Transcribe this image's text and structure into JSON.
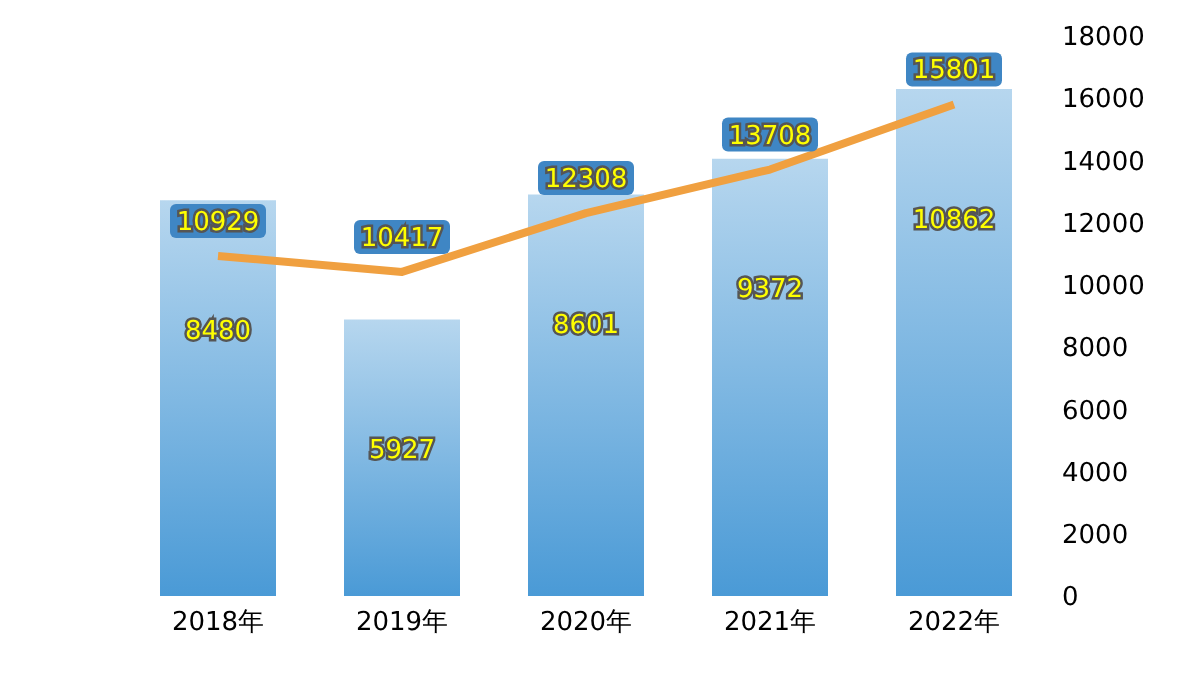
{
  "chart_data": {
    "type": "bar",
    "categories": [
      "2018年",
      "2019年",
      "2020年",
      "2021年",
      "2022年"
    ],
    "series": [
      {
        "axis": "y2",
        "color": "#4a9ad6",
        "values": [
          8480,
          5927,
          8601,
          9372,
          10862
        ]
      },
      {
        "type": "line",
        "color": "#f0a040",
        "values": [
          10929,
          10417,
          12308,
          13708,
          15801
        ]
      }
    ],
    "ylim": [
      0,
      18000
    ],
    "yticks": [
      0,
      2000,
      4000,
      6000,
      8000,
      10000,
      12000,
      14000,
      16000,
      18000
    ],
    "data_labels": true,
    "grid": false,
    "legend": false,
    "marker": "none"
  }
}
